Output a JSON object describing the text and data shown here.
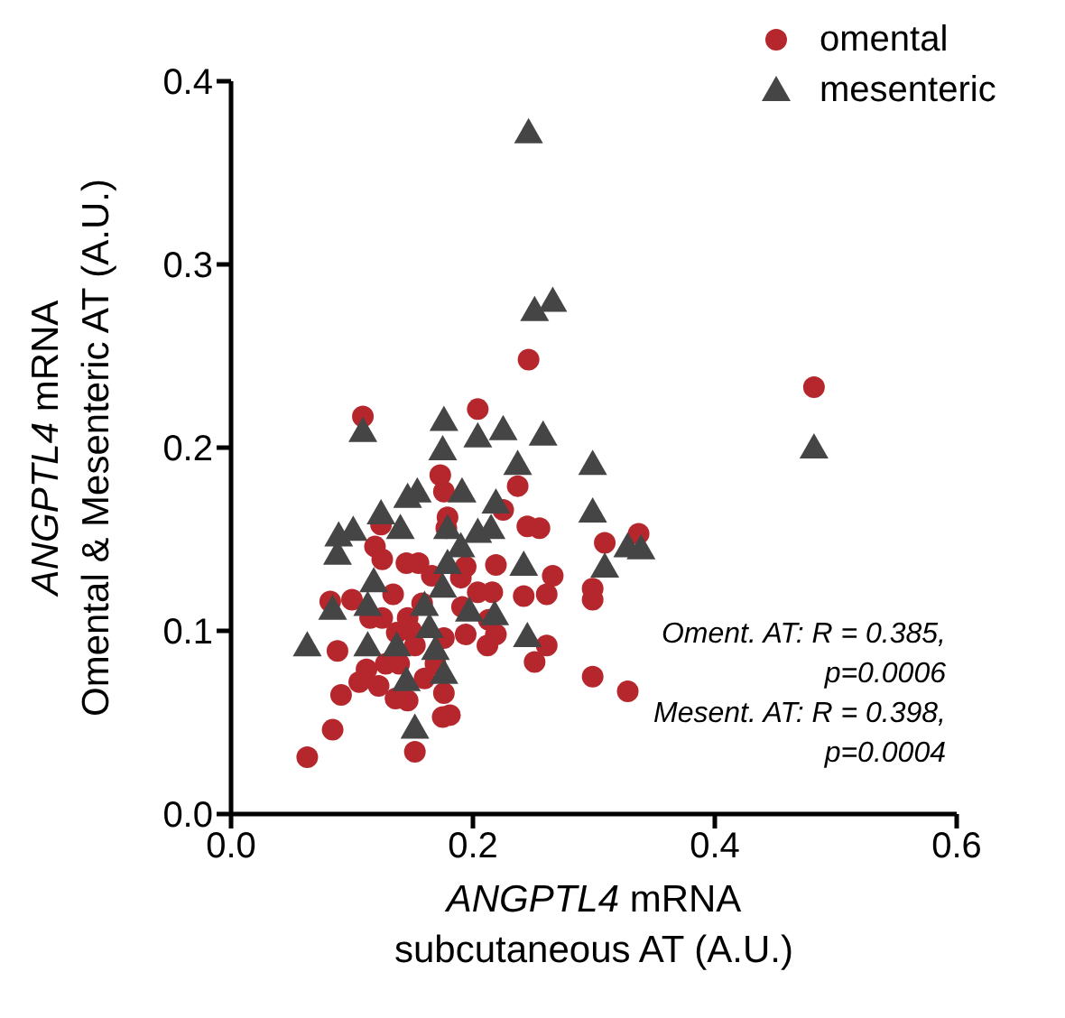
{
  "chart_data": {
    "type": "scatter",
    "xlabel": "ANGPTL4 mRNA\nsubcutaneous AT (A.U.)",
    "ylabel": "ANGPTL4 mRNA\nOmental & Mesenteric AT (A.U.)",
    "xlim": [
      0,
      0.6
    ],
    "xticks": [
      {
        "value": 0,
        "label": "0.0"
      },
      0.2,
      0.4,
      0.6
    ],
    "ylim": [
      0,
      0.4
    ],
    "yticks": [
      {
        "value": 0,
        "label": "0.0"
      },
      0.1,
      0.2,
      0.3,
      0.4
    ],
    "legend": "top right",
    "grid": false,
    "annotations": [
      "Oment. AT: R = 0.385,",
      "p=0.0006",
      "Mesent. AT: R = 0.398,",
      "p=0.0004"
    ],
    "series": [
      {
        "name": "omental",
        "color": "#b5272c",
        "marker": "circle",
        "x": [
          0.109,
          0.204,
          0.246,
          0.482,
          0.309,
          0.337,
          0.299,
          0.299,
          0.266,
          0.261,
          0.261,
          0.299,
          0.328,
          0.173,
          0.176,
          0.237,
          0.225,
          0.179,
          0.124,
          0.178,
          0.245,
          0.255,
          0.119,
          0.125,
          0.145,
          0.155,
          0.166,
          0.194,
          0.19,
          0.219,
          0.082,
          0.1,
          0.134,
          0.158,
          0.204,
          0.216,
          0.242,
          0.115,
          0.125,
          0.146,
          0.191,
          0.213,
          0.137,
          0.149,
          0.152,
          0.176,
          0.194,
          0.219,
          0.212,
          0.088,
          0.251,
          0.128,
          0.139,
          0.112,
          0.169,
          0.16,
          0.106,
          0.122,
          0.136,
          0.146,
          0.176,
          0.091,
          0.084,
          0.175,
          0.181,
          0.063,
          0.152
        ],
        "values": [
          0.217,
          0.221,
          0.248,
          0.233,
          0.148,
          0.153,
          0.123,
          0.117,
          0.13,
          0.12,
          0.092,
          0.075,
          0.067,
          0.185,
          0.176,
          0.179,
          0.166,
          0.162,
          0.158,
          0.156,
          0.157,
          0.156,
          0.146,
          0.139,
          0.137,
          0.137,
          0.13,
          0.135,
          0.129,
          0.136,
          0.116,
          0.117,
          0.12,
          0.115,
          0.121,
          0.121,
          0.119,
          0.107,
          0.107,
          0.107,
          0.113,
          0.106,
          0.099,
          0.1,
          0.092,
          0.096,
          0.098,
          0.098,
          0.092,
          0.089,
          0.083,
          0.082,
          0.082,
          0.079,
          0.082,
          0.074,
          0.072,
          0.07,
          0.063,
          0.062,
          0.066,
          0.065,
          0.046,
          0.053,
          0.054,
          0.031,
          0.034
        ]
      },
      {
        "name": "mesenteric",
        "color": "#454545",
        "marker": "triangle",
        "x": [
          0.246,
          0.251,
          0.266,
          0.109,
          0.176,
          0.204,
          0.225,
          0.258,
          0.175,
          0.237,
          0.299,
          0.482,
          0.299,
          0.328,
          0.339,
          0.309,
          0.154,
          0.146,
          0.191,
          0.219,
          0.124,
          0.089,
          0.101,
          0.14,
          0.179,
          0.204,
          0.215,
          0.088,
          0.19,
          0.179,
          0.242,
          0.118,
          0.175,
          0.084,
          0.113,
          0.16,
          0.197,
          0.218,
          0.063,
          0.113,
          0.137,
          0.164,
          0.169,
          0.245,
          0.145,
          0.176,
          0.152
        ],
        "values": [
          0.372,
          0.275,
          0.28,
          0.209,
          0.215,
          0.206,
          0.21,
          0.207,
          0.199,
          0.191,
          0.191,
          0.2,
          0.165,
          0.146,
          0.145,
          0.135,
          0.176,
          0.173,
          0.176,
          0.17,
          0.164,
          0.152,
          0.155,
          0.156,
          0.156,
          0.154,
          0.156,
          0.142,
          0.146,
          0.137,
          0.136,
          0.127,
          0.124,
          0.112,
          0.114,
          0.114,
          0.111,
          0.109,
          0.092,
          0.092,
          0.092,
          0.102,
          0.09,
          0.097,
          0.073,
          0.077,
          0.047
        ]
      }
    ]
  }
}
